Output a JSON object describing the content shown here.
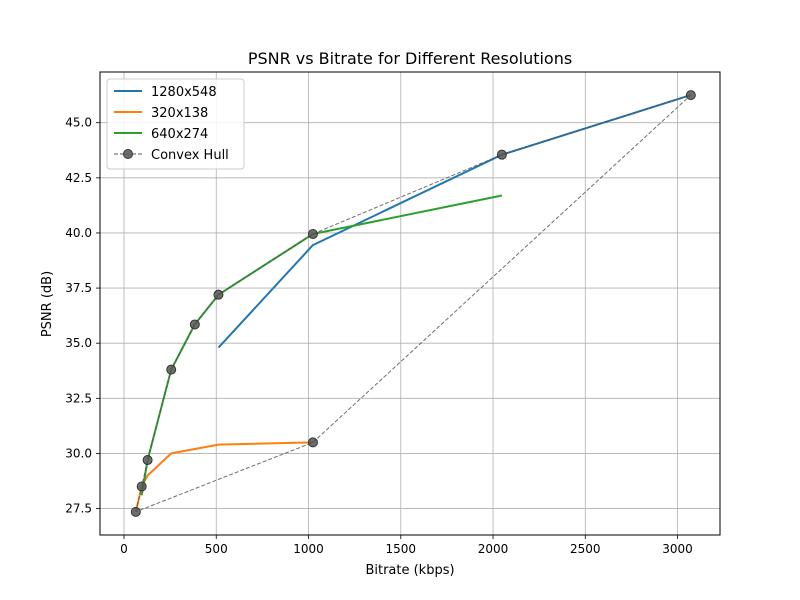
{
  "chart_data": {
    "type": "line",
    "title": "PSNR vs Bitrate for Different Resolutions",
    "xlabel": "Bitrate (kbps)",
    "ylabel": "PSNR (dB)",
    "xlim": [
      -130,
      3230
    ],
    "ylim": [
      26.3,
      47.3
    ],
    "xticks": [
      0,
      500,
      1000,
      1500,
      2000,
      2500,
      3000
    ],
    "yticks": [
      27.5,
      30.0,
      32.5,
      35.0,
      37.5,
      40.0,
      42.5,
      45.0
    ],
    "grid": true,
    "legend_position": "upper-left",
    "series": [
      {
        "name": "1280x548",
        "color": "#1f77b4",
        "style": "solid",
        "x": [
          512,
          1024,
          2048,
          3072
        ],
        "y": [
          34.8,
          39.45,
          43.55,
          46.25
        ]
      },
      {
        "name": "320x138",
        "color": "#ff7f0e",
        "style": "solid",
        "x": [
          64,
          96,
          128,
          256,
          512,
          1024
        ],
        "y": [
          27.35,
          28.5,
          29.0,
          30.0,
          30.4,
          30.5
        ]
      },
      {
        "name": "640x274",
        "color": "#2ca02c",
        "style": "solid",
        "x": [
          96,
          128,
          256,
          384,
          512,
          1024,
          2048
        ],
        "y": [
          28.1,
          29.7,
          33.8,
          35.85,
          37.2,
          39.95,
          41.7
        ]
      },
      {
        "name": "Convex Hull",
        "color": "#555555",
        "style": "dashed-markers",
        "x": [
          64,
          96,
          128,
          256,
          384,
          512,
          1024,
          2048,
          3072,
          1024,
          64
        ],
        "y": [
          27.35,
          28.5,
          29.7,
          33.8,
          35.85,
          37.2,
          39.95,
          43.55,
          46.25,
          30.5,
          27.35
        ]
      }
    ]
  }
}
